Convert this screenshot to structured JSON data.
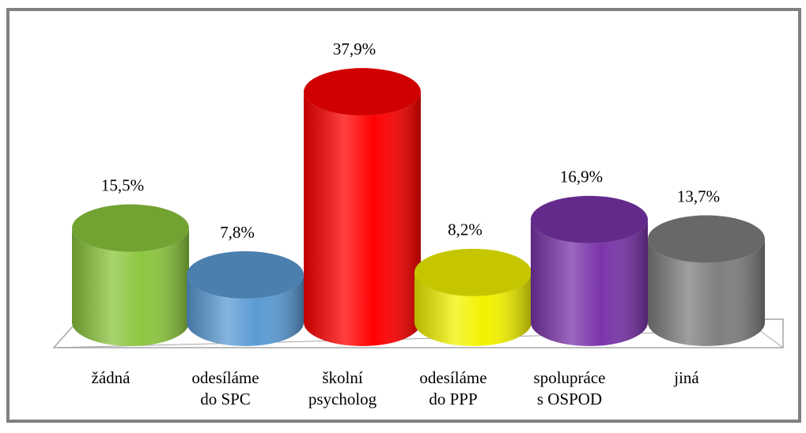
{
  "chart_data": {
    "type": "cylinder",
    "categories": [
      [
        "žádná"
      ],
      [
        "odesíláme",
        "do SPC"
      ],
      [
        "školní",
        "psycholog"
      ],
      [
        "odesíláme",
        "do PPP"
      ],
      [
        "spolupráce",
        "s OSPOD"
      ],
      [
        "jiná"
      ]
    ],
    "values": [
      15.5,
      7.8,
      37.9,
      8.2,
      16.9,
      13.7
    ],
    "value_labels": [
      "15,5%",
      "7,8%",
      "37,9%",
      "8,2%",
      "16,9%",
      "13,7%"
    ],
    "colors": [
      "#8cc63e",
      "#5b9bd5",
      "#ff0000",
      "#f2f200",
      "#7a34aa",
      "#7f7f7f"
    ]
  }
}
